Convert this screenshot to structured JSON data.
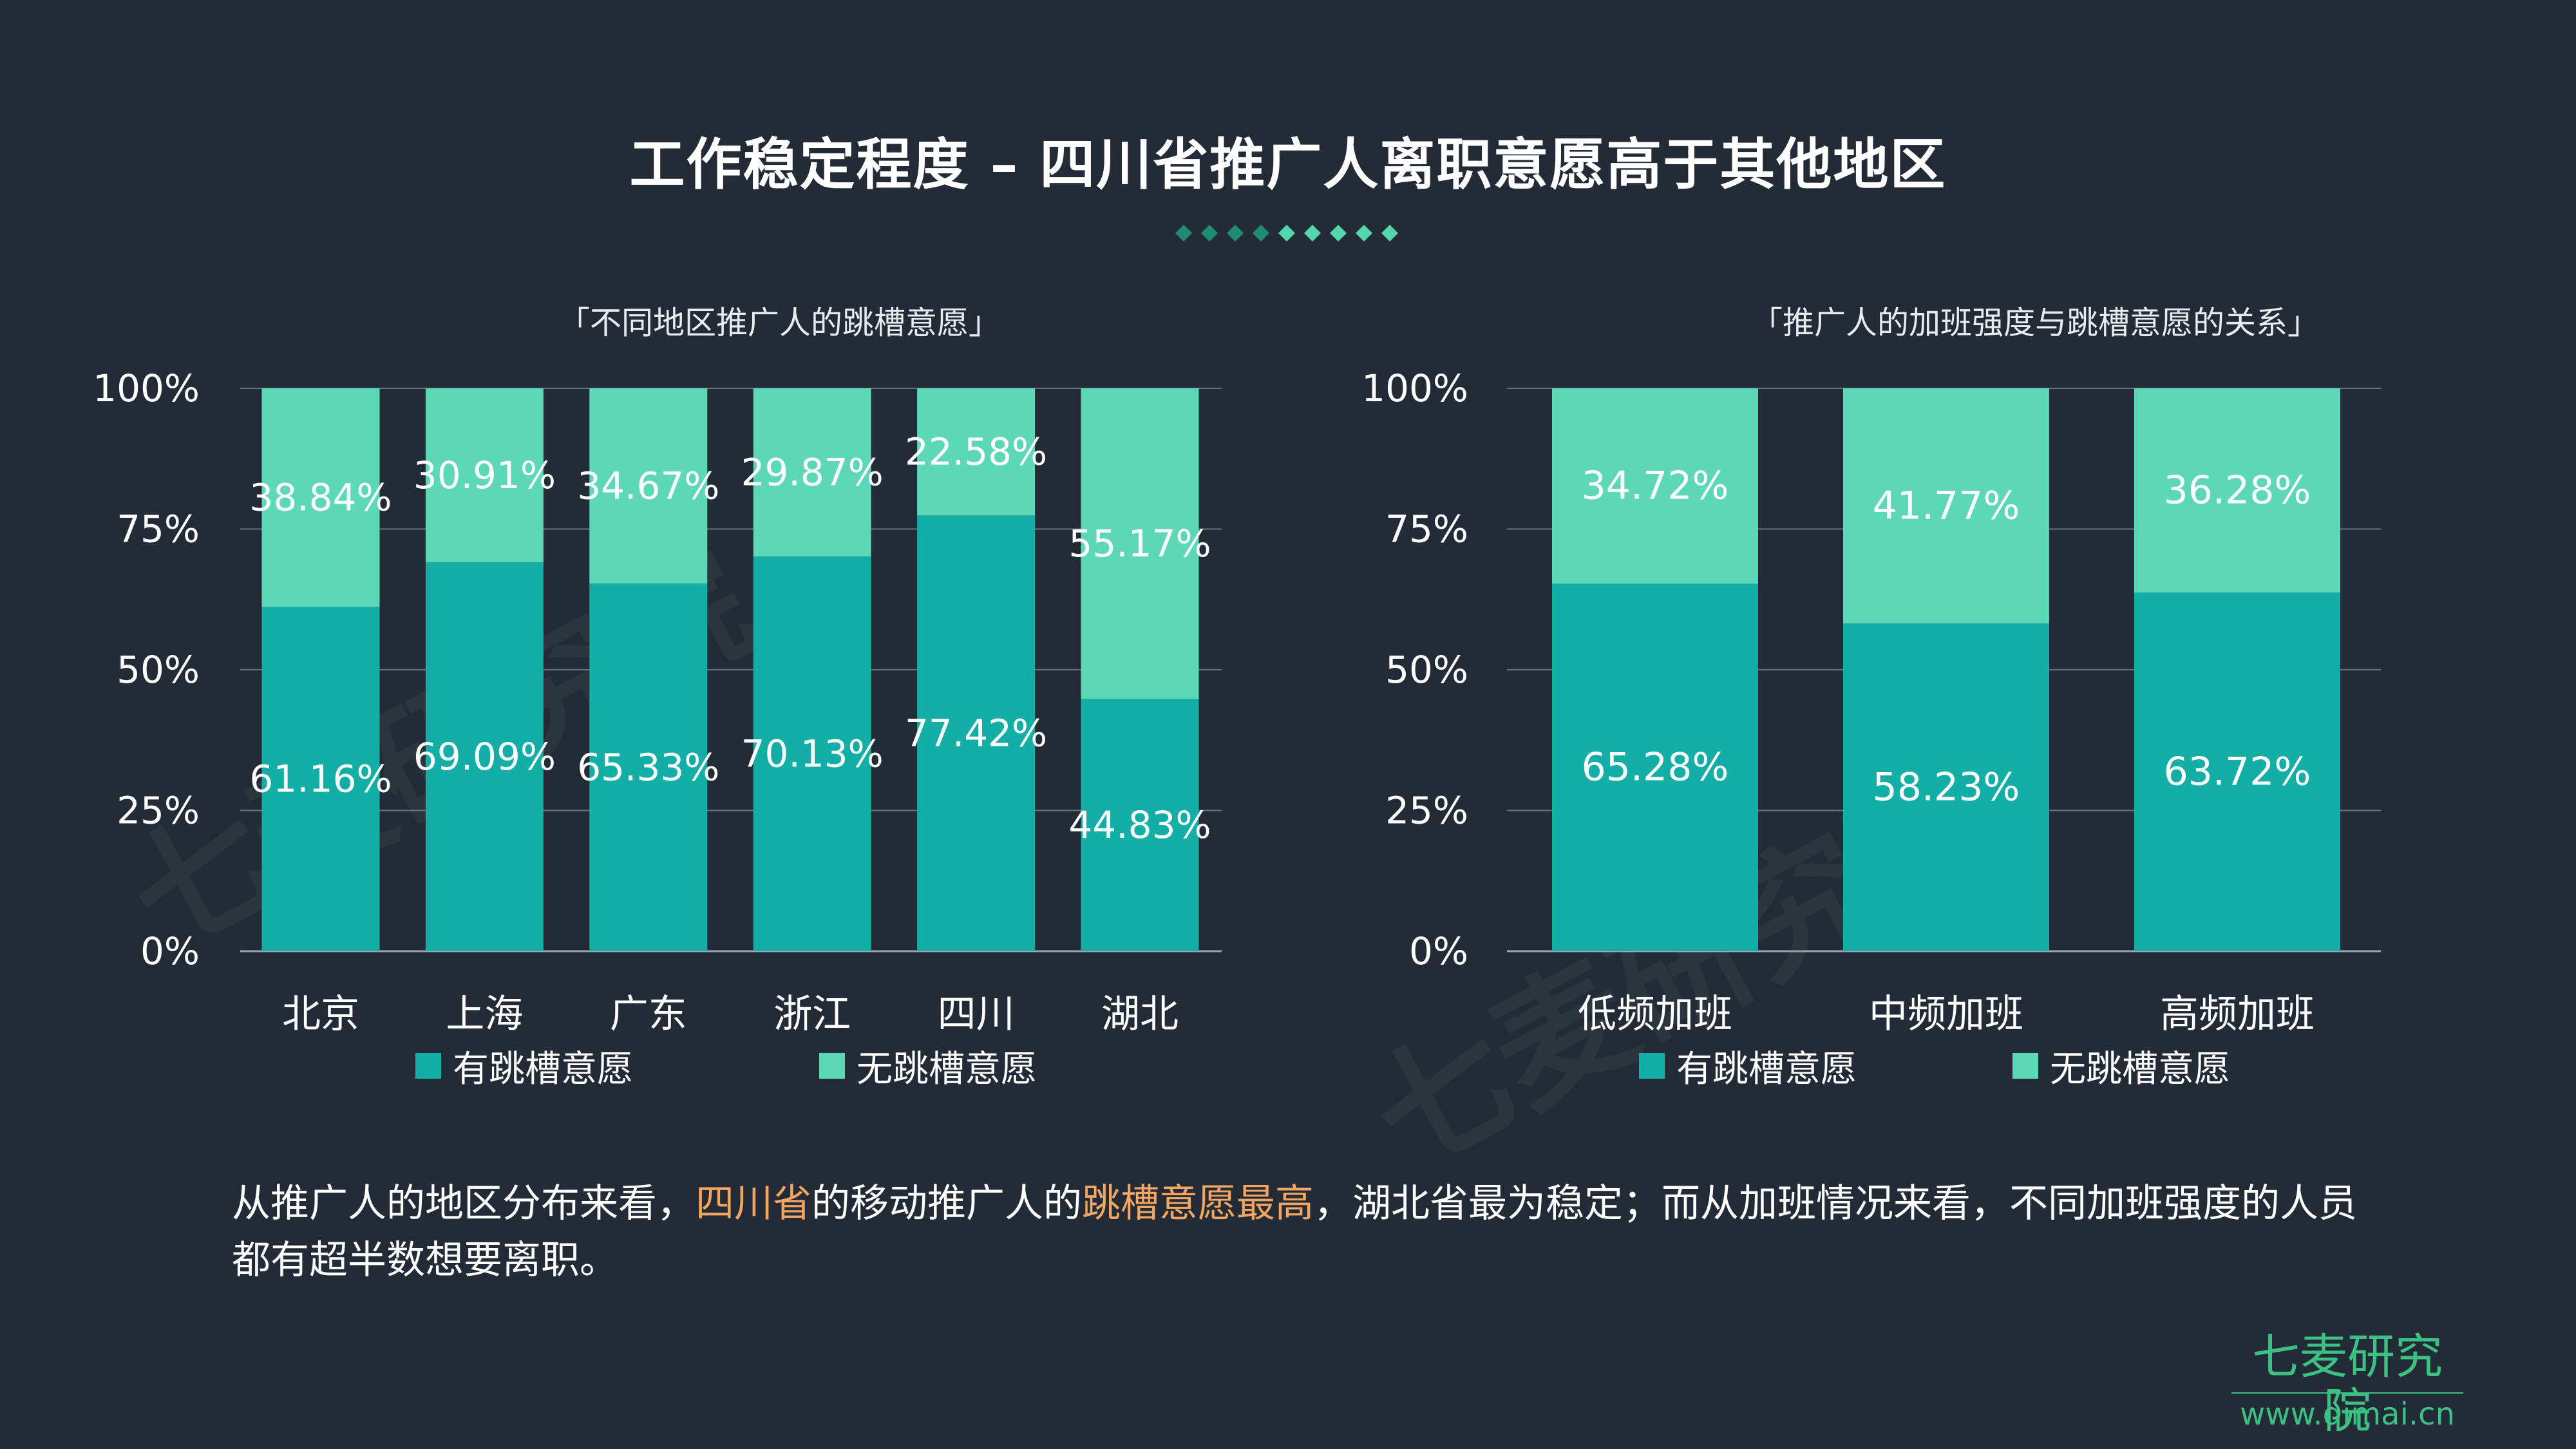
{
  "title": "工作稳定程度 – 四川省推广人离职意愿高于其他地区",
  "colors": {
    "background": "#232b36",
    "has_intent": "#13aea6",
    "no_intent": "#5dd8b6",
    "highlight": "#f3a661",
    "brand": "#3dc183",
    "diamond_dark": "#1f8c72",
    "diamond_light": "#52d6aa"
  },
  "chart_data": [
    {
      "type": "bar",
      "stacked": true,
      "title": "「不同地区推广人的跳槽意愿」",
      "categories": [
        "北京",
        "上海",
        "广东",
        "浙江",
        "四川",
        "湖北"
      ],
      "series": [
        {
          "name": "有跳槽意愿",
          "values": [
            61.16,
            69.09,
            65.33,
            70.13,
            77.42,
            44.83
          ]
        },
        {
          "name": "无跳槽意愿",
          "values": [
            38.84,
            30.91,
            34.67,
            29.87,
            22.58,
            55.17
          ]
        }
      ],
      "value_labels": [
        [
          "61.16%",
          "69.09%",
          "65.33%",
          "70.13%",
          "77.42%",
          "44.83%"
        ],
        [
          "38.84%",
          "30.91%",
          "34.67%",
          "29.87%",
          "22.58%",
          "55.17%"
        ]
      ],
      "yticks": [
        "0%",
        "25%",
        "50%",
        "75%",
        "100%"
      ],
      "ylim": [
        0,
        100
      ],
      "grid": true,
      "legend": "bottom"
    },
    {
      "type": "bar",
      "stacked": true,
      "title": "「推广人的加班强度与跳槽意愿的关系」",
      "categories": [
        "低频加班",
        "中频加班",
        "高频加班"
      ],
      "series": [
        {
          "name": "有跳槽意愿",
          "values": [
            65.28,
            58.23,
            63.72
          ]
        },
        {
          "name": "无跳槽意愿",
          "values": [
            34.72,
            41.77,
            36.28
          ]
        }
      ],
      "value_labels": [
        [
          "65.28%",
          "58.23%",
          "63.72%"
        ],
        [
          "34.72%",
          "41.77%",
          "36.28%"
        ]
      ],
      "yticks": [
        "0%",
        "25%",
        "50%",
        "75%",
        "100%"
      ],
      "ylim": [
        0,
        100
      ],
      "grid": true,
      "legend": "bottom"
    }
  ],
  "summary": {
    "p1": "从推广人的地区分布来看，",
    "h1": "四川省",
    "p2": "的移动推广人的",
    "h2": "跳槽意愿最高",
    "p3": "，湖北省最为稳定；而从加班情况来看，不同加班强度的人员都有超半数想要离职。"
  },
  "brand": {
    "name": "七麦研究院",
    "url": "www.qimai.cn"
  },
  "watermark": "七麦研究院"
}
